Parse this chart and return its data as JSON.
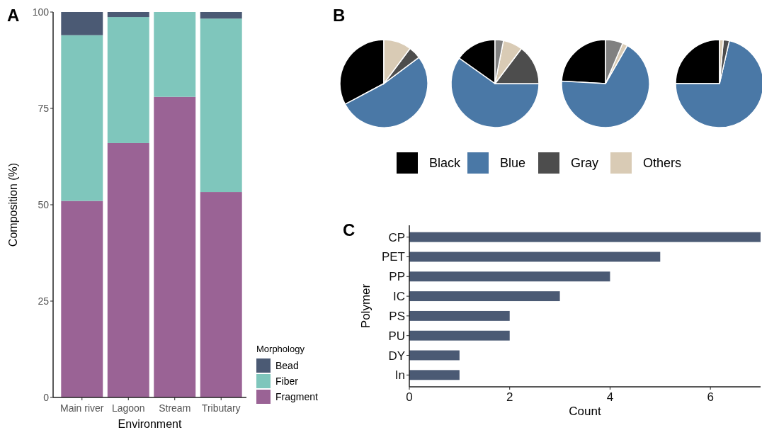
{
  "chart_data": [
    {
      "type": "bar",
      "title": "A",
      "xlabel": "Environment",
      "ylabel": "Composition (%)",
      "legend_title": "Morphology",
      "legend": "bottom right",
      "stacked": true,
      "categories": [
        "Main river",
        "Lagoon",
        "Stream",
        "Tributary"
      ],
      "ylim": [
        0,
        100
      ],
      "yticks": [
        0,
        25,
        50,
        75,
        100
      ],
      "series": [
        {
          "name": "Fragment",
          "color": "#9a6395",
          "values": [
            51,
            66,
            78,
            53.3
          ]
        },
        {
          "name": "Fiber",
          "color": "#7fc6bc",
          "values": [
            43,
            32.7,
            22,
            45
          ]
        },
        {
          "name": "Bead",
          "color": "#4b5a74",
          "values": [
            6,
            1.3,
            0,
            1.7
          ]
        }
      ]
    },
    {
      "type": "pie",
      "title": "B",
      "legend": "bottom",
      "categories": [
        "Black",
        "Blue",
        "Gray",
        "Others",
        null
      ],
      "colors": [
        "#000000",
        "#4a78a6",
        "#4d4d4d",
        "#d9cbb5",
        "#808080"
      ],
      "values": [
        32.8,
        52.4,
        4.6,
        10.2,
        0
      ]
    },
    {
      "type": "pie",
      "categories": [
        null,
        null,
        null,
        null,
        null
      ],
      "colors": [
        "#000000",
        "#4a78a6",
        "#4d4d4d",
        "#d9cbb5",
        "#808080"
      ],
      "values": [
        15.2,
        59.8,
        14.7,
        7.2,
        3.1
      ]
    },
    {
      "type": "pie",
      "categories": [
        null,
        null,
        null,
        null,
        null
      ],
      "colors": [
        "#000000",
        "#4a78a6",
        "#4d4d4d",
        "#d9cbb5",
        "#808080"
      ],
      "values": [
        24.1,
        67.6,
        0,
        1.9,
        6.4
      ]
    },
    {
      "type": "pie",
      "categories": [
        null,
        null,
        null,
        null,
        null
      ],
      "colors": [
        "#000000",
        "#4a78a6",
        "#4d4d4d",
        "#d9cbb5",
        "#808080"
      ],
      "values": [
        25,
        71.4,
        2.2,
        1.4,
        0
      ]
    },
    {
      "type": "bar",
      "title": "C",
      "orientation": "horizontal",
      "xlabel": "Count",
      "ylabel": "Polymer",
      "categories": [
        "CP",
        "PET",
        "PP",
        "IC",
        "PS",
        "PU",
        "DY",
        "In"
      ],
      "xlim": [
        0,
        7
      ],
      "xticks": [
        0,
        2,
        4,
        6
      ],
      "values": [
        7,
        5,
        4,
        3,
        2,
        2,
        1,
        1
      ],
      "color": "#4b5a74"
    }
  ]
}
